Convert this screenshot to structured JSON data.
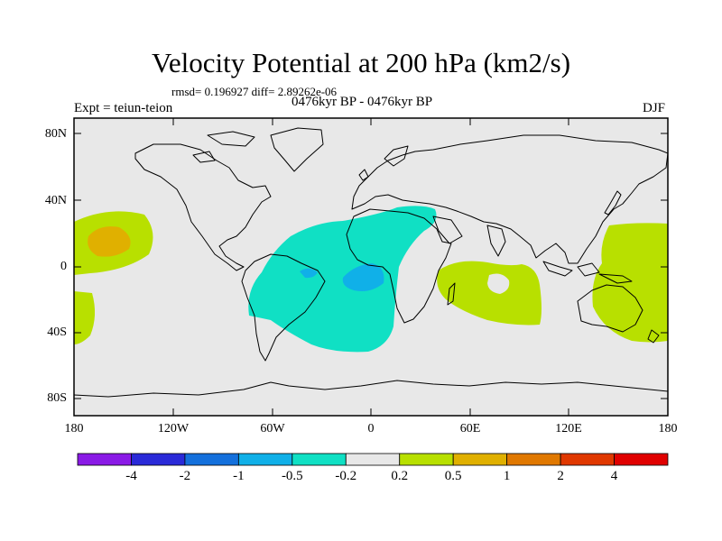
{
  "title": "Velocity Potential at 200 hPa (km2/s)",
  "stats_line": "rmsd= 0.196927 diff= 2.89262e-06",
  "experiment": "Expt = teiun-teion",
  "period": "0476kyr BP - 0476kyr BP",
  "season": "DJF",
  "map": {
    "projection": "cylindrical equidistant",
    "lon_range": [
      -180,
      180
    ],
    "lat_range": [
      -90,
      90
    ],
    "land_color": "#e8e8e8",
    "coastline_color": "#000000",
    "lat_ticks": [
      {
        "value": 80,
        "label": "80N"
      },
      {
        "value": 40,
        "label": "40N"
      },
      {
        "value": 0,
        "label": "0"
      },
      {
        "value": -40,
        "label": "40S"
      },
      {
        "value": -80,
        "label": "80S"
      }
    ],
    "lon_ticks": [
      {
        "value": -180,
        "label": "180"
      },
      {
        "value": -120,
        "label": "120W"
      },
      {
        "value": -60,
        "label": "60W"
      },
      {
        "value": 0,
        "label": "0"
      },
      {
        "value": 60,
        "label": "60E"
      },
      {
        "value": 120,
        "label": "120E"
      },
      {
        "value": 180,
        "label": "180"
      }
    ]
  },
  "colorbar": {
    "colors": [
      "#8a1ae6",
      "#2a2ad8",
      "#1470dc",
      "#10b0e8",
      "#10e0c4",
      "#e8e8e8",
      "#b8e000",
      "#e0b000",
      "#e07800",
      "#e03800",
      "#e00000"
    ],
    "labels": [
      "-4",
      "-2",
      "-1",
      "-0.5",
      "-0.2",
      "0.2",
      "0.5",
      "1",
      "2",
      "4"
    ]
  }
}
